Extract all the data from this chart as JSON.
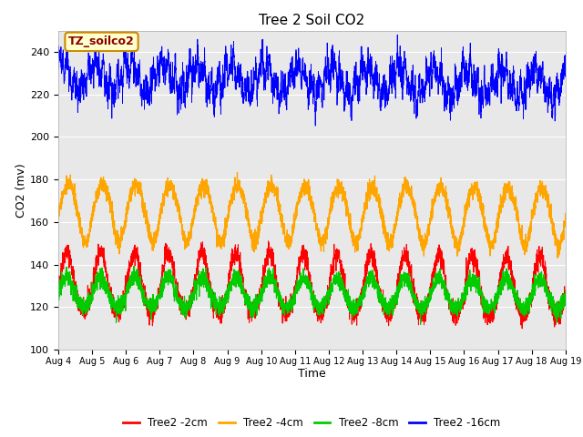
{
  "title": "Tree 2 Soil CO2",
  "xlabel": "Time",
  "ylabel": "CO2 (mv)",
  "ylim": [
    100,
    250
  ],
  "yticks": [
    100,
    120,
    140,
    160,
    180,
    200,
    220,
    240
  ],
  "date_labels": [
    "Aug 4",
    "Aug 5",
    "Aug 6",
    "Aug 7",
    "Aug 8",
    "Aug 9",
    "Aug 10",
    "Aug 11",
    "Aug 12",
    "Aug 13",
    "Aug 14",
    "Aug 15",
    "Aug 16",
    "Aug 17",
    "Aug 18",
    "Aug 19"
  ],
  "legend_labels": [
    "Tree2 -2cm",
    "Tree2 -4cm",
    "Tree2 -8cm",
    "Tree2 -16cm"
  ],
  "line_colors": [
    "#ff0000",
    "#ffa500",
    "#00cc00",
    "#0000ff"
  ],
  "annotation_text": "TZ_soilco2",
  "annotation_bg": "#ffffcc",
  "annotation_border": "#cc8800",
  "plot_bg": "#e8e8e8",
  "n_points": 3600,
  "days": 15,
  "seed": 42
}
